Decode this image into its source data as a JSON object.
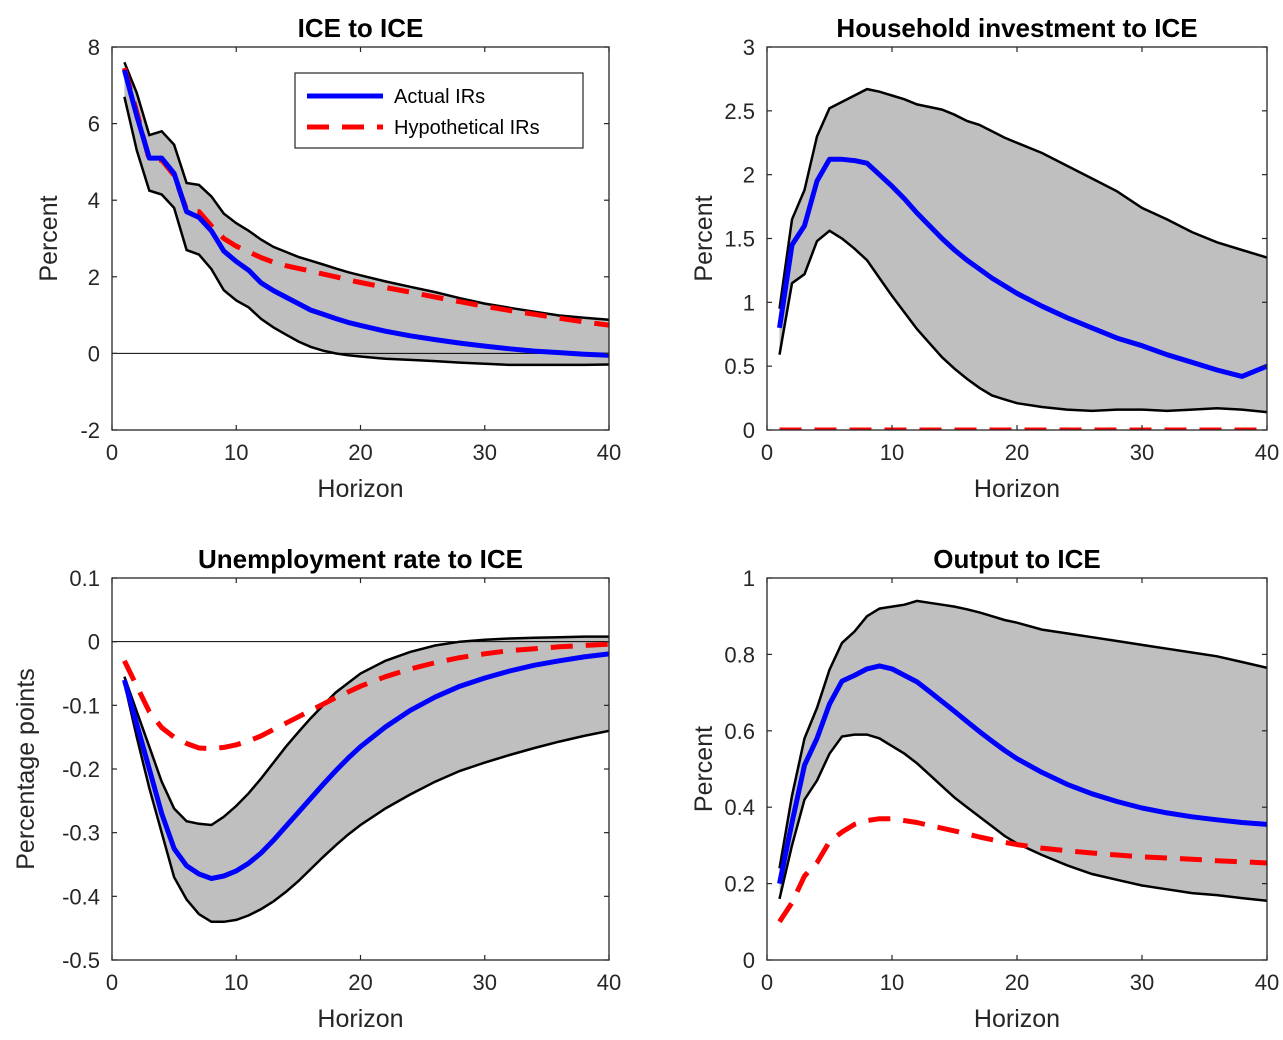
{
  "chart_data": [
    {
      "type": "line",
      "title": "ICE to ICE",
      "xlabel": "Horizon",
      "ylabel": "Percent",
      "xlim": [
        0,
        40
      ],
      "ylim": [
        -2,
        8
      ],
      "xticks": [
        0,
        10,
        20,
        30,
        40
      ],
      "yticks": [
        -2,
        0,
        2,
        4,
        6,
        8
      ],
      "zero_line": true,
      "band": {
        "x": [
          1,
          2,
          3,
          4,
          5,
          6,
          7,
          8,
          9,
          10,
          11,
          12,
          13,
          14,
          15,
          16,
          17,
          18,
          19,
          20,
          22,
          24,
          26,
          28,
          30,
          32,
          34,
          36,
          38,
          40
        ],
        "upper": [
          7.6,
          6.8,
          5.7,
          5.8,
          5.45,
          4.45,
          4.4,
          4.1,
          3.65,
          3.4,
          3.2,
          2.97,
          2.78,
          2.65,
          2.52,
          2.42,
          2.32,
          2.22,
          2.12,
          2.04,
          1.88,
          1.74,
          1.6,
          1.44,
          1.3,
          1.19,
          1.09,
          0.99,
          0.93,
          0.88
        ],
        "lower": [
          6.7,
          5.3,
          4.25,
          4.15,
          3.8,
          2.7,
          2.58,
          2.2,
          1.65,
          1.38,
          1.2,
          0.9,
          0.68,
          0.49,
          0.31,
          0.17,
          0.07,
          0.0,
          -0.05,
          -0.08,
          -0.14,
          -0.17,
          -0.2,
          -0.24,
          -0.27,
          -0.3,
          -0.3,
          -0.3,
          -0.3,
          -0.29
        ]
      },
      "series": [
        {
          "name": "Actual IRs",
          "color": "#0000ff",
          "style": "solid",
          "x": [
            1,
            2,
            3,
            4,
            5,
            6,
            7,
            8,
            9,
            10,
            11,
            12,
            13,
            14,
            15,
            16,
            17,
            18,
            19,
            20,
            22,
            24,
            26,
            28,
            30,
            32,
            34,
            36,
            38,
            40
          ],
          "values": [
            7.4,
            6.2,
            5.1,
            5.1,
            4.7,
            3.7,
            3.55,
            3.2,
            2.67,
            2.4,
            2.17,
            1.84,
            1.64,
            1.47,
            1.3,
            1.13,
            1.02,
            0.91,
            0.81,
            0.73,
            0.58,
            0.46,
            0.36,
            0.27,
            0.19,
            0.12,
            0.06,
            0.02,
            -0.02,
            -0.05
          ]
        },
        {
          "name": "Hypothetical IRs",
          "color": "#ff0000",
          "style": "dashed",
          "x": [
            1,
            2,
            3,
            4,
            5,
            6,
            7,
            8,
            9,
            10,
            11,
            12,
            13,
            14,
            15,
            16,
            17,
            18,
            19,
            20,
            22,
            24,
            26,
            28,
            30,
            32,
            34,
            36,
            38,
            40
          ],
          "values": [
            7.45,
            6.3,
            5.05,
            5.05,
            4.65,
            3.75,
            3.7,
            3.33,
            3.0,
            2.8,
            2.65,
            2.5,
            2.38,
            2.29,
            2.22,
            2.15,
            2.07,
            2.0,
            1.92,
            1.85,
            1.72,
            1.6,
            1.47,
            1.35,
            1.23,
            1.12,
            1.02,
            0.92,
            0.82,
            0.74
          ]
        }
      ],
      "legend": {
        "position": "top-right",
        "entries": [
          "Actual IRs",
          "Hypothetical IRs"
        ]
      }
    },
    {
      "type": "line",
      "title": "Household investment to ICE",
      "xlabel": "Horizon",
      "ylabel": "Percent",
      "xlim": [
        0,
        40
      ],
      "ylim": [
        0,
        3
      ],
      "xticks": [
        0,
        10,
        20,
        30,
        40
      ],
      "yticks": [
        0,
        0.5,
        1,
        1.5,
        2,
        2.5,
        3
      ],
      "zero_line": false,
      "band": {
        "x": [
          1,
          2,
          3,
          4,
          5,
          6,
          7,
          8,
          9,
          10,
          11,
          12,
          13,
          14,
          15,
          16,
          17,
          18,
          19,
          20,
          22,
          24,
          26,
          28,
          30,
          32,
          34,
          36,
          38,
          40
        ],
        "upper": [
          0.95,
          1.65,
          1.88,
          2.3,
          2.52,
          2.57,
          2.62,
          2.67,
          2.65,
          2.62,
          2.59,
          2.55,
          2.53,
          2.51,
          2.47,
          2.42,
          2.39,
          2.34,
          2.29,
          2.25,
          2.17,
          2.07,
          1.97,
          1.87,
          1.74,
          1.65,
          1.55,
          1.47,
          1.41,
          1.35
        ],
        "lower": [
          0.59,
          1.15,
          1.22,
          1.48,
          1.56,
          1.5,
          1.42,
          1.33,
          1.19,
          1.05,
          0.92,
          0.79,
          0.68,
          0.57,
          0.48,
          0.4,
          0.33,
          0.27,
          0.24,
          0.21,
          0.18,
          0.16,
          0.15,
          0.16,
          0.16,
          0.15,
          0.16,
          0.17,
          0.16,
          0.14
        ]
      },
      "series": [
        {
          "name": "Actual IRs",
          "color": "#0000ff",
          "style": "solid",
          "x": [
            1,
            2,
            3,
            4,
            5,
            6,
            7,
            8,
            9,
            10,
            11,
            12,
            13,
            14,
            15,
            16,
            17,
            18,
            19,
            20,
            22,
            24,
            26,
            28,
            30,
            32,
            34,
            36,
            38,
            40
          ],
          "values": [
            0.8,
            1.45,
            1.6,
            1.95,
            2.12,
            2.12,
            2.11,
            2.09,
            2.0,
            1.91,
            1.81,
            1.7,
            1.6,
            1.5,
            1.41,
            1.33,
            1.26,
            1.19,
            1.13,
            1.07,
            0.97,
            0.88,
            0.8,
            0.72,
            0.66,
            0.59,
            0.53,
            0.47,
            0.42,
            0.5
          ]
        },
        {
          "name": "Hypothetical IRs",
          "color": "#ff0000",
          "style": "dashed",
          "x": [
            1,
            40
          ],
          "values": [
            0,
            0
          ]
        }
      ]
    },
    {
      "type": "line",
      "title": "Unemployment rate to ICE",
      "xlabel": "Horizon",
      "ylabel": "Percentage points",
      "xlim": [
        0,
        40
      ],
      "ylim": [
        -0.5,
        0.1
      ],
      "xticks": [
        0,
        10,
        20,
        30,
        40
      ],
      "yticks": [
        -0.5,
        -0.4,
        -0.3,
        -0.2,
        -0.1,
        0,
        0.1
      ],
      "zero_line": true,
      "band": {
        "x": [
          1,
          2,
          3,
          4,
          5,
          6,
          7,
          8,
          9,
          10,
          11,
          12,
          13,
          14,
          15,
          16,
          17,
          18,
          19,
          20,
          22,
          24,
          26,
          28,
          30,
          32,
          34,
          36,
          38,
          40
        ],
        "upper": [
          -0.055,
          -0.11,
          -0.165,
          -0.22,
          -0.262,
          -0.282,
          -0.286,
          -0.288,
          -0.275,
          -0.258,
          -0.238,
          -0.215,
          -0.19,
          -0.165,
          -0.142,
          -0.12,
          -0.1,
          -0.08,
          -0.065,
          -0.05,
          -0.03,
          -0.016,
          -0.006,
          0.0,
          0.003,
          0.005,
          0.006,
          0.007,
          0.008,
          0.008
        ],
        "lower": [
          -0.065,
          -0.15,
          -0.23,
          -0.3,
          -0.37,
          -0.405,
          -0.428,
          -0.44,
          -0.44,
          -0.437,
          -0.43,
          -0.42,
          -0.408,
          -0.393,
          -0.376,
          -0.357,
          -0.338,
          -0.32,
          -0.303,
          -0.288,
          -0.262,
          -0.24,
          -0.22,
          -0.203,
          -0.19,
          -0.178,
          -0.167,
          -0.157,
          -0.148,
          -0.14
        ]
      },
      "series": [
        {
          "name": "Actual IRs",
          "color": "#0000ff",
          "style": "solid",
          "x": [
            1,
            2,
            3,
            4,
            5,
            6,
            7,
            8,
            9,
            10,
            11,
            12,
            13,
            14,
            15,
            16,
            17,
            18,
            19,
            20,
            22,
            24,
            26,
            28,
            30,
            32,
            34,
            36,
            38,
            40
          ],
          "values": [
            -0.06,
            -0.13,
            -0.2,
            -0.27,
            -0.325,
            -0.352,
            -0.365,
            -0.372,
            -0.368,
            -0.36,
            -0.348,
            -0.332,
            -0.312,
            -0.29,
            -0.268,
            -0.246,
            -0.224,
            -0.203,
            -0.183,
            -0.165,
            -0.134,
            -0.108,
            -0.087,
            -0.07,
            -0.057,
            -0.046,
            -0.037,
            -0.03,
            -0.024,
            -0.019
          ]
        },
        {
          "name": "Hypothetical IRs",
          "color": "#ff0000",
          "style": "dashed",
          "x": [
            1,
            2,
            3,
            4,
            5,
            6,
            7,
            8,
            9,
            10,
            11,
            12,
            13,
            14,
            15,
            16,
            17,
            18,
            19,
            20,
            22,
            24,
            26,
            28,
            30,
            32,
            34,
            36,
            38,
            40
          ],
          "values": [
            -0.03,
            -0.07,
            -0.11,
            -0.135,
            -0.15,
            -0.16,
            -0.167,
            -0.168,
            -0.166,
            -0.162,
            -0.156,
            -0.148,
            -0.138,
            -0.128,
            -0.118,
            -0.108,
            -0.098,
            -0.088,
            -0.079,
            -0.07,
            -0.055,
            -0.043,
            -0.033,
            -0.025,
            -0.019,
            -0.014,
            -0.011,
            -0.008,
            -0.006,
            -0.004
          ]
        }
      ]
    },
    {
      "type": "line",
      "title": "Output to ICE",
      "xlabel": "Horizon",
      "ylabel": "Percent",
      "xlim": [
        0,
        40
      ],
      "ylim": [
        0,
        1
      ],
      "xticks": [
        0,
        10,
        20,
        30,
        40
      ],
      "yticks": [
        0,
        0.2,
        0.4,
        0.6,
        0.8,
        1
      ],
      "zero_line": false,
      "band": {
        "x": [
          1,
          2,
          3,
          4,
          5,
          6,
          7,
          8,
          9,
          10,
          11,
          12,
          13,
          14,
          15,
          16,
          17,
          18,
          19,
          20,
          22,
          24,
          26,
          28,
          30,
          32,
          34,
          36,
          38,
          40
        ],
        "upper": [
          0.24,
          0.43,
          0.58,
          0.66,
          0.76,
          0.83,
          0.86,
          0.9,
          0.92,
          0.925,
          0.93,
          0.94,
          0.935,
          0.93,
          0.925,
          0.918,
          0.91,
          0.9,
          0.89,
          0.883,
          0.865,
          0.855,
          0.845,
          0.835,
          0.825,
          0.815,
          0.805,
          0.795,
          0.78,
          0.765
        ],
        "lower": [
          0.16,
          0.3,
          0.42,
          0.47,
          0.54,
          0.585,
          0.59,
          0.59,
          0.58,
          0.56,
          0.54,
          0.515,
          0.485,
          0.455,
          0.425,
          0.4,
          0.375,
          0.35,
          0.325,
          0.305,
          0.275,
          0.248,
          0.225,
          0.21,
          0.195,
          0.185,
          0.175,
          0.17,
          0.162,
          0.155
        ]
      },
      "series": [
        {
          "name": "Actual IRs",
          "color": "#0000ff",
          "style": "solid",
          "x": [
            1,
            2,
            3,
            4,
            5,
            6,
            7,
            8,
            9,
            10,
            11,
            12,
            13,
            14,
            15,
            16,
            17,
            18,
            19,
            20,
            22,
            24,
            26,
            28,
            30,
            32,
            34,
            36,
            38,
            40
          ],
          "values": [
            0.2,
            0.36,
            0.51,
            0.58,
            0.67,
            0.73,
            0.745,
            0.762,
            0.77,
            0.762,
            0.745,
            0.728,
            0.703,
            0.677,
            0.651,
            0.624,
            0.598,
            0.573,
            0.549,
            0.527,
            0.491,
            0.46,
            0.435,
            0.415,
            0.398,
            0.385,
            0.375,
            0.367,
            0.36,
            0.355
          ]
        },
        {
          "name": "Hypothetical IRs",
          "color": "#ff0000",
          "style": "dashed",
          "x": [
            1,
            2,
            3,
            4,
            5,
            6,
            7,
            8,
            9,
            10,
            11,
            12,
            13,
            14,
            15,
            16,
            17,
            18,
            19,
            20,
            22,
            24,
            26,
            28,
            30,
            32,
            34,
            36,
            38,
            40
          ],
          "values": [
            0.1,
            0.15,
            0.22,
            0.255,
            0.31,
            0.335,
            0.355,
            0.365,
            0.37,
            0.37,
            0.365,
            0.36,
            0.352,
            0.345,
            0.338,
            0.33,
            0.322,
            0.315,
            0.308,
            0.302,
            0.293,
            0.286,
            0.28,
            0.275,
            0.27,
            0.267,
            0.264,
            0.26,
            0.257,
            0.254
          ]
        }
      ]
    }
  ]
}
